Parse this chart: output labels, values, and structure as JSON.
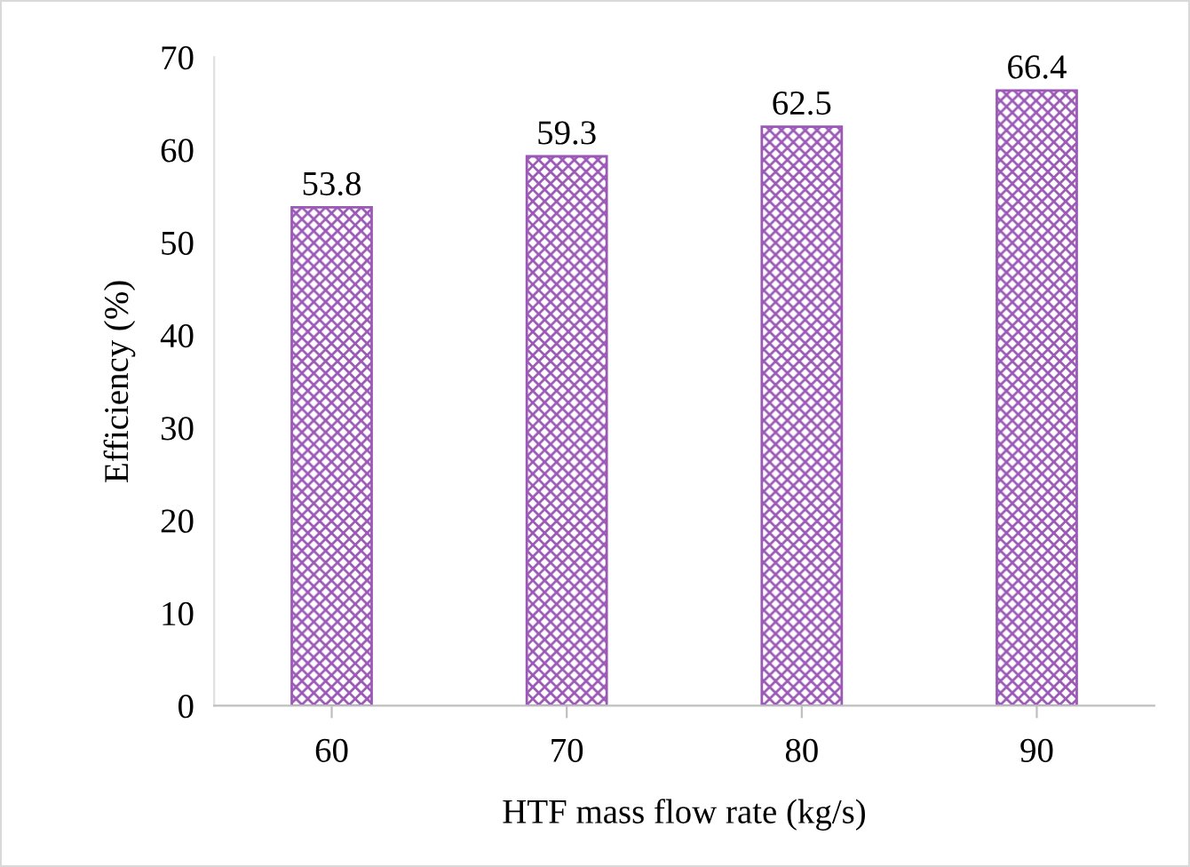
{
  "chart_data": {
    "type": "bar",
    "xlabel": "HTF mass flow rate (kg/s)",
    "ylabel": "Efficiency (%)",
    "categories": [
      "60",
      "70",
      "80",
      "90"
    ],
    "values": [
      53.8,
      59.3,
      62.5,
      66.4
    ],
    "color": "#9b59b6",
    "ylim": [
      0,
      70
    ],
    "yticks": [
      0,
      10,
      20,
      30,
      40,
      50,
      60,
      70
    ],
    "data_labels": true,
    "grid": false,
    "legend": false
  }
}
